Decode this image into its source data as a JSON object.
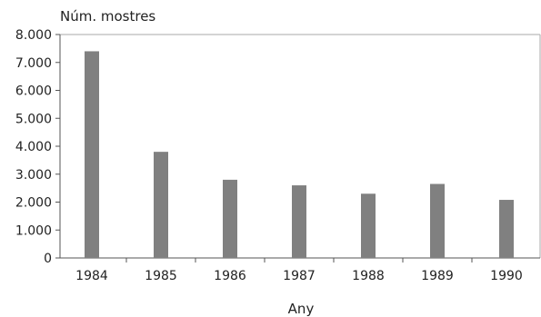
{
  "chart_data": {
    "type": "bar",
    "ylabel": "Núm. mostres",
    "xlabel": "Any",
    "categories": [
      "1984",
      "1985",
      "1986",
      "1987",
      "1988",
      "1989",
      "1990"
    ],
    "values": [
      7400,
      3800,
      2800,
      2600,
      2300,
      2650,
      2080
    ],
    "ylim": [
      0,
      8000
    ],
    "yticks": [
      "0",
      "1.000",
      "2.000",
      "3.000",
      "4.000",
      "5.000",
      "6.000",
      "7.000",
      "8.000"
    ],
    "grid": false,
    "legend": "none",
    "bar_color": "#808080",
    "frame_color": "#aaaaaa"
  }
}
